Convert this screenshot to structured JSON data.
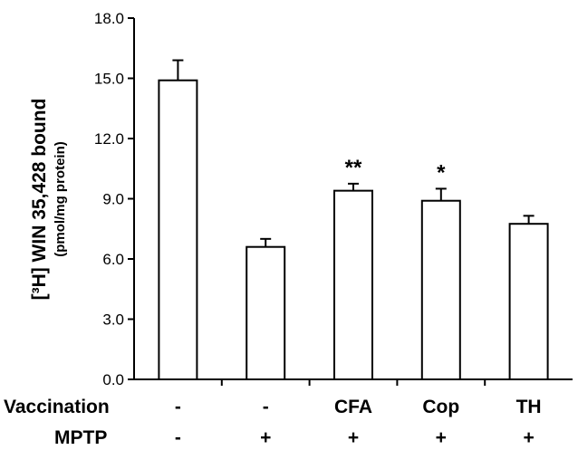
{
  "chart_data": {
    "type": "bar",
    "ylabel": "[³H] WIN 35,428 bound",
    "ylabel_unit": "(pmol/mg protein)",
    "ylim": [
      0,
      18
    ],
    "yticks": [
      "0.0",
      "3.0",
      "6.0",
      "9.0",
      "12.0",
      "15.0",
      "18.0"
    ],
    "ytick_values": [
      0,
      3,
      6,
      9,
      12,
      15,
      18
    ],
    "grid": false,
    "legend": "none",
    "bar_color": "#ffffff",
    "stroke_color": "#000000",
    "groups": [
      {
        "vaccination": "-",
        "mptp": "-",
        "value": 14.9,
        "error": 1.0,
        "significance": ""
      },
      {
        "vaccination": "-",
        "mptp": "+",
        "value": 6.6,
        "error": 0.4,
        "significance": ""
      },
      {
        "vaccination": "CFA",
        "mptp": "+",
        "value": 9.4,
        "error": 0.35,
        "significance": "**"
      },
      {
        "vaccination": "Cop",
        "mptp": "+",
        "value": 8.9,
        "error": 0.6,
        "significance": "*"
      },
      {
        "vaccination": "TH",
        "mptp": "+",
        "value": 7.75,
        "error": 0.4,
        "significance": ""
      }
    ],
    "row_labels": {
      "vaccination": "Vaccination",
      "mptp": "MPTP"
    }
  }
}
